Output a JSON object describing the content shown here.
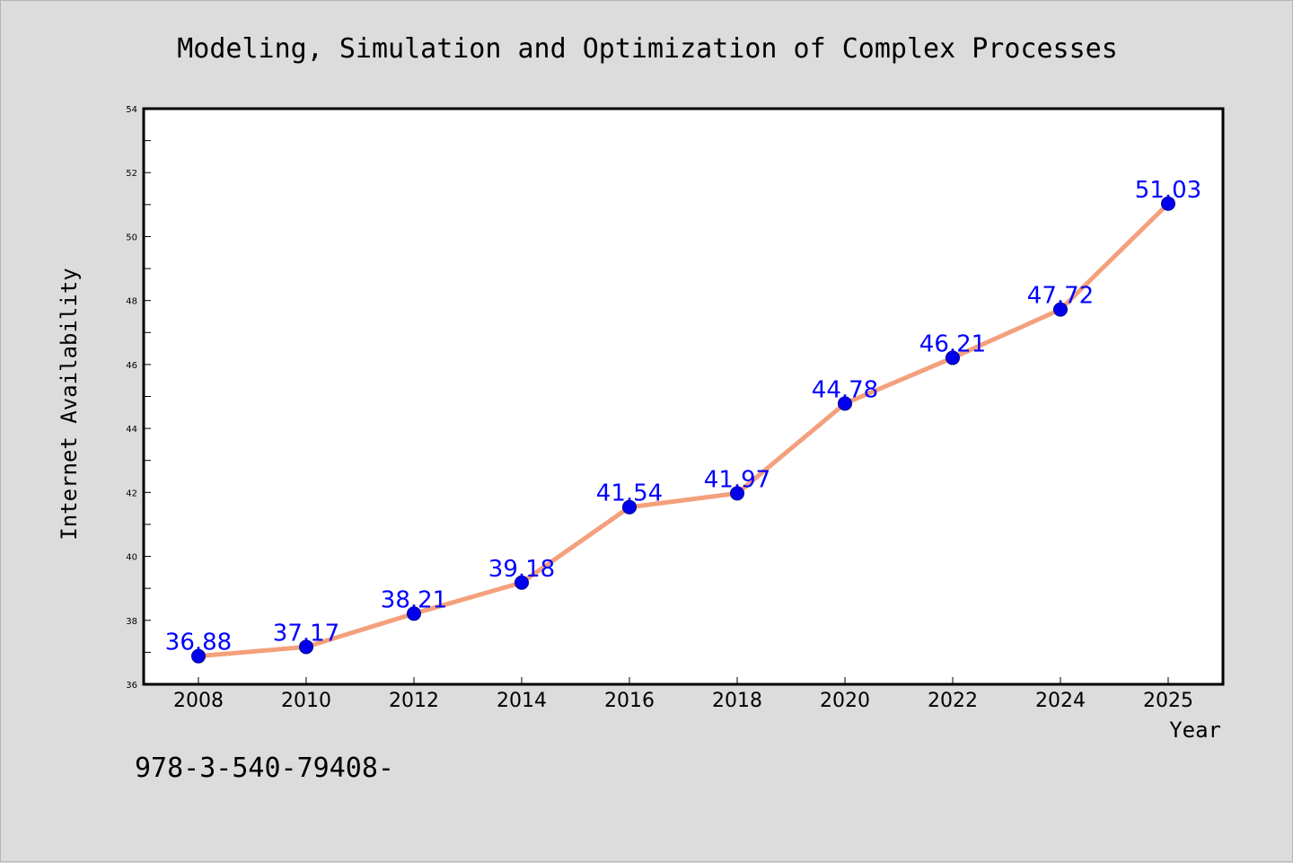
{
  "chart_data": {
    "type": "line",
    "title": "Modeling, Simulation and Optimization of Complex Processes",
    "xlabel": "Year",
    "ylabel": "Internet Availability",
    "caption": "978-3-540-79408-",
    "categories": [
      "2008",
      "2010",
      "2012",
      "2014",
      "2016",
      "2018",
      "2020",
      "2022",
      "2024",
      "2025"
    ],
    "series": [
      {
        "values": [
          36.88,
          37.17,
          38.21,
          39.18,
          41.54,
          41.97,
          44.78,
          46.21,
          47.72,
          51.03
        ],
        "labels": [
          "36.88",
          "37.17",
          "38.21",
          "39.18",
          "41.54",
          "41.97",
          "44.78",
          "46.21",
          "47.72",
          "51.03"
        ]
      }
    ],
    "ylim": [
      36,
      54
    ],
    "yticks": [
      "36",
      "38",
      "40",
      "42",
      "44",
      "46",
      "48",
      "50",
      "52",
      "54"
    ],
    "grid": false,
    "colors": {
      "line": "#f4a07c",
      "marker": "#0000ee",
      "label": "#0000ff",
      "background": "#dcdcdc",
      "plot": "#ffffff"
    }
  }
}
